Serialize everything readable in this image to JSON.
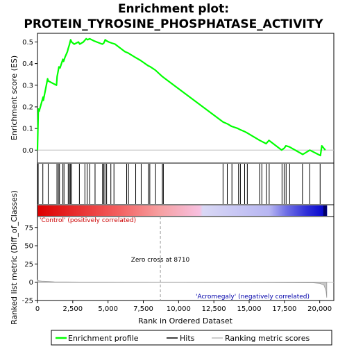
{
  "chart_data": {
    "type": "line",
    "title_line1": "Enrichment plot:",
    "title_line2": "PROTEIN_TYROSINE_PHOSPHATASE_ACTIVITY",
    "xlabel": "Rank in Ordered Dataset",
    "ylabel_top": "Enrichment score (ES)",
    "ylabel_bottom": "Ranked list metric (Diff_of_Classes)",
    "xlim": [
      0,
      21000
    ],
    "ylim_top": [
      -0.06,
      0.54
    ],
    "ylim_bottom": [
      -25,
      90
    ],
    "x_ticks": [
      0,
      2500,
      5000,
      7500,
      10000,
      12500,
      15000,
      17500,
      20000
    ],
    "x_tick_labels": [
      "0",
      "2,500",
      "5,000",
      "7,500",
      "10,000",
      "12,500",
      "15,000",
      "17,500",
      "20,000"
    ],
    "y_ticks_top": [
      0.0,
      0.1,
      0.2,
      0.3,
      0.4,
      0.5
    ],
    "y_tick_labels_top": [
      "0.0",
      "0.1",
      "0.2",
      "0.3",
      "0.4",
      "0.5"
    ],
    "y_ticks_bottom": [
      -25,
      0,
      25,
      50,
      75
    ],
    "y_tick_labels_bottom": [
      "-25",
      "0",
      "25",
      "50",
      "75"
    ],
    "annotation_positive": "'Control' (positively correlated)",
    "annotation_negative": "'Acromegaly' (negatively correlated)",
    "zero_cross_label": "Zero cross at 8710",
    "zero_cross": 8710,
    "series": [
      {
        "name": "Enrichment profile",
        "color": "#00ff00",
        "x": [
          0,
          60,
          120,
          400,
          420,
          720,
          760,
          1350,
          1390,
          1450,
          1520,
          1600,
          1800,
          1850,
          1950,
          2120,
          2180,
          2250,
          2350,
          2420,
          2600,
          2900,
          3000,
          3250,
          3450,
          3550,
          3700,
          4000,
          4200,
          4600,
          4700,
          4800,
          4900,
          5050,
          5250,
          5500,
          6200,
          6400,
          6900,
          7300,
          7850,
          8000,
          8350,
          8850,
          8950,
          13150,
          13500,
          13750,
          14200,
          14350,
          14700,
          14850,
          15750,
          15900,
          16200,
          16400,
          17300,
          17500,
          17600,
          17850,
          18800,
          19300,
          20050,
          20150,
          20400
        ],
        "y": [
          0.0,
          0.19,
          0.18,
          0.245,
          0.23,
          0.33,
          0.32,
          0.3,
          0.34,
          0.36,
          0.385,
          0.38,
          0.42,
          0.41,
          0.43,
          0.455,
          0.47,
          0.485,
          0.51,
          0.5,
          0.49,
          0.5,
          0.49,
          0.5,
          0.515,
          0.51,
          0.515,
          0.505,
          0.5,
          0.49,
          0.495,
          0.51,
          0.505,
          0.5,
          0.495,
          0.49,
          0.455,
          0.45,
          0.43,
          0.415,
          0.39,
          0.385,
          0.37,
          0.34,
          0.335,
          0.13,
          0.12,
          0.11,
          0.1,
          0.095,
          0.085,
          0.08,
          0.045,
          0.04,
          0.03,
          0.045,
          0.0,
          0.01,
          0.02,
          0.015,
          -0.02,
          0.0,
          -0.025,
          0.02,
          0.0
        ]
      }
    ],
    "hits": [
      50,
      380,
      760,
      1380,
      1480,
      1560,
      1800,
      1880,
      2180,
      2270,
      2330,
      2420,
      2970,
      3360,
      3520,
      3700,
      4080,
      4610,
      4700,
      4780,
      4900,
      5200,
      5420,
      6320,
      6450,
      6960,
      7350,
      7850,
      7960,
      8370,
      8850,
      8920,
      13150,
      13450,
      13780,
      14250,
      14380,
      14680,
      14870,
      15740,
      15900,
      16220,
      16420,
      17330,
      17480,
      17620,
      17870,
      18780,
      19290,
      20030
    ],
    "metric_bar_colors": [
      "#dd0000",
      "#f36060",
      "#f69fa0",
      "#f7c0e0",
      "#d9d8f5",
      "#b7b6f2",
      "#6e6ee5",
      "#2f2fd8",
      "#0000cc"
    ],
    "legend": [
      "Enrichment profile",
      "Hits",
      "Ranking metric scores"
    ]
  }
}
